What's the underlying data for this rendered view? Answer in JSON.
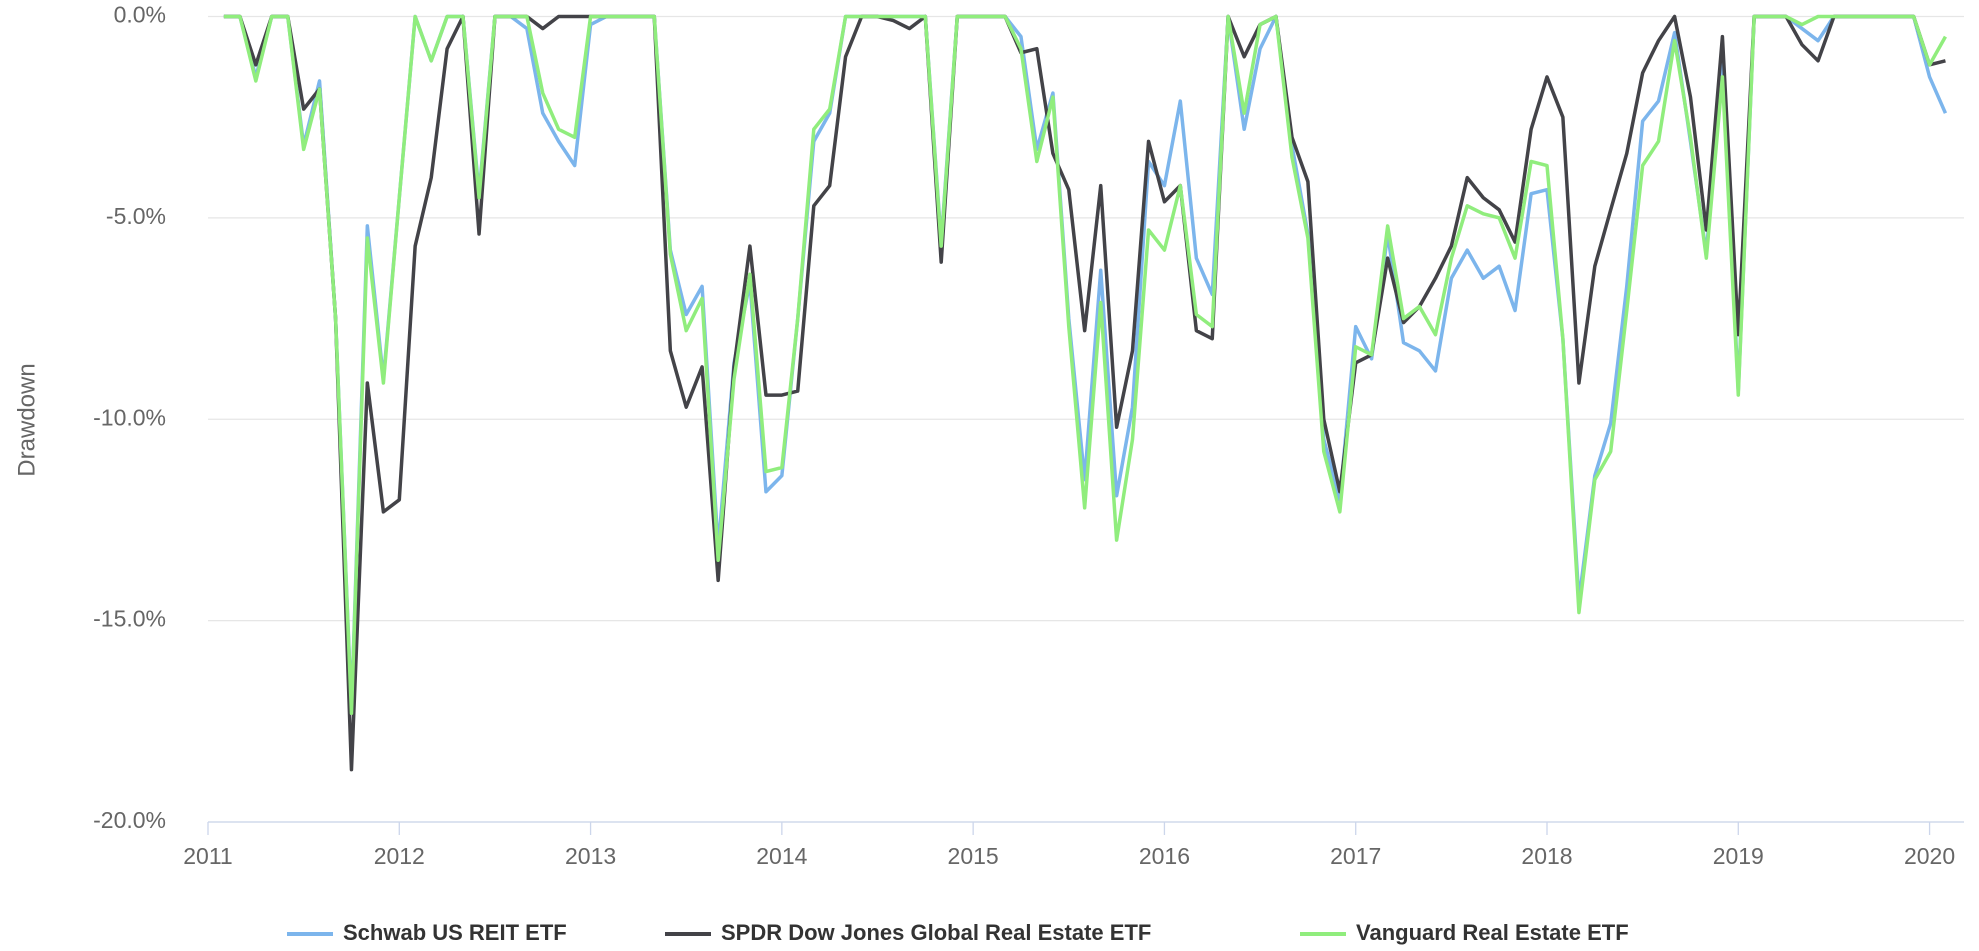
{
  "chart_data": {
    "type": "line",
    "ylabel": "Drawdown",
    "x": [
      2011.083,
      2011.167,
      2011.25,
      2011.333,
      2011.417,
      2011.5,
      2011.583,
      2011.667,
      2011.75,
      2011.833,
      2011.917,
      2012,
      2012.083,
      2012.167,
      2012.25,
      2012.333,
      2012.417,
      2012.5,
      2012.583,
      2012.667,
      2012.75,
      2012.833,
      2012.917,
      2013,
      2013.083,
      2013.167,
      2013.25,
      2013.333,
      2013.417,
      2013.5,
      2013.583,
      2013.667,
      2013.75,
      2013.833,
      2013.917,
      2014,
      2014.083,
      2014.167,
      2014.25,
      2014.333,
      2014.417,
      2014.5,
      2014.583,
      2014.667,
      2014.75,
      2014.833,
      2014.917,
      2015,
      2015.083,
      2015.167,
      2015.25,
      2015.333,
      2015.417,
      2015.5,
      2015.583,
      2015.667,
      2015.75,
      2015.833,
      2015.917,
      2016,
      2016.083,
      2016.167,
      2016.25,
      2016.333,
      2016.417,
      2016.5,
      2016.583,
      2016.667,
      2016.75,
      2016.833,
      2016.917,
      2017,
      2017.083,
      2017.167,
      2017.25,
      2017.333,
      2017.417,
      2017.5,
      2017.583,
      2017.667,
      2017.75,
      2017.833,
      2017.917,
      2018,
      2018.083,
      2018.167,
      2018.25,
      2018.333,
      2018.417,
      2018.5,
      2018.583,
      2018.667,
      2018.75,
      2018.833,
      2018.917,
      2019,
      2019.083,
      2019.167,
      2019.25,
      2019.333,
      2019.417,
      2019.5,
      2019.583,
      2019.667,
      2019.75,
      2019.833,
      2019.917,
      2020,
      2020.083
    ],
    "series": [
      {
        "name": "Schwab US REIT ETF",
        "color": "#7cb5ec",
        "values": [
          0,
          0,
          -1.5,
          0,
          0,
          -3.2,
          -1.6,
          -7.5,
          -17.2,
          -5.2,
          -9.0,
          -4.5,
          0,
          -1.1,
          0,
          0,
          -4.4,
          0,
          0,
          -0.3,
          -2.4,
          -3.1,
          -3.7,
          -0.2,
          0,
          0,
          0,
          0,
          -5.8,
          -7.4,
          -6.7,
          -13.2,
          -8.6,
          -6.6,
          -11.8,
          -11.4,
          -7.5,
          -3.1,
          -2.4,
          0,
          0,
          0,
          0,
          0,
          0,
          -5.6,
          0,
          0,
          0,
          0,
          -0.5,
          -3.3,
          -1.9,
          -7.5,
          -11.5,
          -6.3,
          -11.9,
          -9.7,
          -3.6,
          -4.2,
          -2.1,
          -6.0,
          -6.9,
          0,
          -2.8,
          -0.8,
          0,
          -3.2,
          -5.4,
          -10.5,
          -12.0,
          -7.7,
          -8.5,
          -5.4,
          -8.1,
          -8.3,
          -8.8,
          -6.5,
          -5.8,
          -6.5,
          -6.2,
          -7.3,
          -4.4,
          -4.3,
          -8.0,
          -14.5,
          -11.4,
          -10.1,
          -6.7,
          -2.6,
          -2.1,
          -0.4,
          -3.1,
          -5.9,
          -0.7,
          -9.3,
          0,
          0,
          0,
          -0.3,
          -0.6,
          0,
          0,
          0,
          0,
          0,
          0,
          -1.5,
          -2.4
        ]
      },
      {
        "name": "SPDR Dow Jones Global Real Estate ETF",
        "color": "#434348",
        "values": [
          0,
          0,
          -1.2,
          0,
          0,
          -2.3,
          -1.8,
          -7.5,
          -18.7,
          -9.1,
          -12.3,
          -12.0,
          -5.7,
          -4.0,
          -0.8,
          0,
          -5.4,
          0,
          0,
          0,
          -0.3,
          0,
          0,
          0,
          0,
          0,
          0,
          0,
          -8.3,
          -9.7,
          -8.7,
          -14.0,
          -8.7,
          -5.7,
          -9.4,
          -9.4,
          -9.3,
          -4.7,
          -4.2,
          -1.0,
          0,
          0,
          -0.1,
          -0.3,
          0,
          -6.1,
          0,
          0,
          0,
          0,
          -0.9,
          -0.8,
          -3.4,
          -4.3,
          -7.8,
          -4.2,
          -10.2,
          -8.3,
          -3.1,
          -4.6,
          -4.2,
          -7.8,
          -8.0,
          0,
          -1.0,
          -0.2,
          0,
          -3.0,
          -4.1,
          -10.0,
          -11.8,
          -8.6,
          -8.4,
          -6.0,
          -7.6,
          -7.2,
          -6.5,
          -5.7,
          -4.0,
          -4.5,
          -4.8,
          -5.6,
          -2.8,
          -1.5,
          -2.5,
          -9.1,
          -6.2,
          -4.8,
          -3.4,
          -1.4,
          -0.6,
          0,
          -2.0,
          -5.3,
          -0.5,
          -7.9,
          0,
          0,
          0,
          -0.7,
          -1.1,
          0,
          0,
          0,
          0,
          0,
          0,
          -1.2,
          -1.1
        ]
      },
      {
        "name": "Vanguard Real Estate ETF",
        "color": "#90ed7d",
        "values": [
          0,
          0,
          -1.6,
          0,
          0,
          -3.3,
          -1.8,
          -7.5,
          -17.3,
          -5.5,
          -9.1,
          -4.5,
          0,
          -1.1,
          0,
          0,
          -4.5,
          0,
          0,
          0,
          -1.9,
          -2.8,
          -3.0,
          0,
          0,
          0,
          0,
          0,
          -5.9,
          -7.8,
          -7.0,
          -13.5,
          -9.0,
          -6.4,
          -11.3,
          -11.2,
          -7.5,
          -2.8,
          -2.3,
          0,
          0,
          0,
          0,
          0,
          0,
          -5.7,
          0,
          0,
          0,
          0,
          -0.8,
          -3.6,
          -2.0,
          -7.7,
          -12.2,
          -7.1,
          -13.0,
          -10.5,
          -5.3,
          -5.8,
          -4.2,
          -7.4,
          -7.7,
          0,
          -2.4,
          -0.2,
          0,
          -3.5,
          -5.5,
          -10.8,
          -12.3,
          -8.2,
          -8.4,
          -5.2,
          -7.5,
          -7.2,
          -7.9,
          -6.0,
          -4.7,
          -4.9,
          -5.0,
          -6.0,
          -3.6,
          -3.7,
          -8.0,
          -14.8,
          -11.5,
          -10.8,
          -7.3,
          -3.7,
          -3.1,
          -0.6,
          -3.0,
          -6.0,
          -1.5,
          -9.4,
          0,
          0,
          0,
          -0.2,
          0,
          0,
          0,
          0,
          0,
          0,
          0,
          -1.2,
          -0.5
        ]
      }
    ],
    "xlim": [
      2011,
      2020.18
    ],
    "xticks": [
      2011,
      2012,
      2013,
      2014,
      2015,
      2016,
      2017,
      2018,
      2019,
      2020
    ],
    "ylim": [
      -20,
      0
    ],
    "yticks": [
      {
        "value": -20,
        "label": "-20.0%"
      },
      {
        "value": -15,
        "label": "-15.0%"
      },
      {
        "value": -10,
        "label": "-10.0%"
      },
      {
        "value": -5,
        "label": "-5.0%"
      },
      {
        "value": 0,
        "label": "0.0%"
      }
    ],
    "grid": true,
    "legend": "bottom"
  }
}
